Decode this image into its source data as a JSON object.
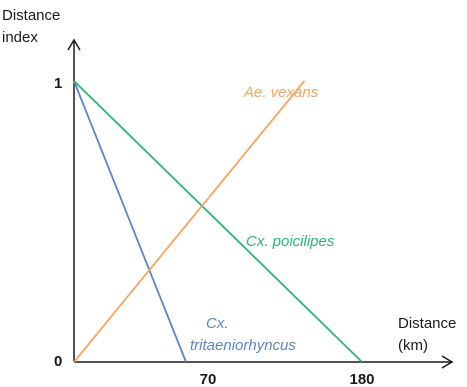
{
  "chart_data": {
    "type": "line",
    "xlabel": [
      "Distance",
      "(km)"
    ],
    "ylabel": [
      "Distance",
      "index"
    ],
    "xlim": [
      0,
      180
    ],
    "ylim": [
      0,
      1
    ],
    "x_ticks": [
      {
        "value": 0,
        "label": "0"
      },
      {
        "value": 70,
        "label": "70"
      },
      {
        "value": 180,
        "label": "180"
      }
    ],
    "y_ticks": [
      {
        "value": 1,
        "label": "1"
      }
    ],
    "series": [
      {
        "name": "Cx. tritaeniorhyncus",
        "name_lines": [
          "Cx.",
          "tritaeniorhyncus"
        ],
        "color": "#5b86c5",
        "x": [
          0,
          70
        ],
        "y": [
          1,
          0
        ]
      },
      {
        "name": "Cx. poicilipes",
        "name_lines": [
          "Cx. poicilipes"
        ],
        "color": "#2bb673",
        "x": [
          0,
          180
        ],
        "y": [
          1,
          0
        ]
      },
      {
        "name": "Ae. vexans",
        "name_lines": [
          "Ae. vexans"
        ],
        "color": "#f4a460",
        "x": [
          0,
          144
        ],
        "y": [
          0,
          1
        ]
      }
    ]
  }
}
